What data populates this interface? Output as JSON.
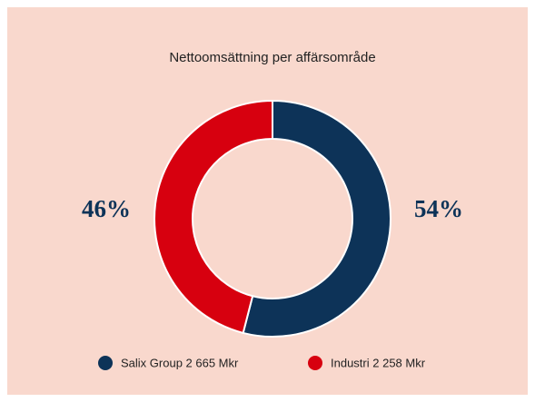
{
  "chart_data": {
    "type": "pie",
    "donut": true,
    "title": "Nettoomsättning per affärsområde",
    "categories": [
      "Salix Group 2 665 Mkr",
      "Industri 2 258 Mkr"
    ],
    "values": [
      54,
      46
    ],
    "value_labels": [
      "54%",
      "46%"
    ],
    "colors": [
      "#0d3358",
      "#d7000f"
    ],
    "legend": "bottom"
  }
}
